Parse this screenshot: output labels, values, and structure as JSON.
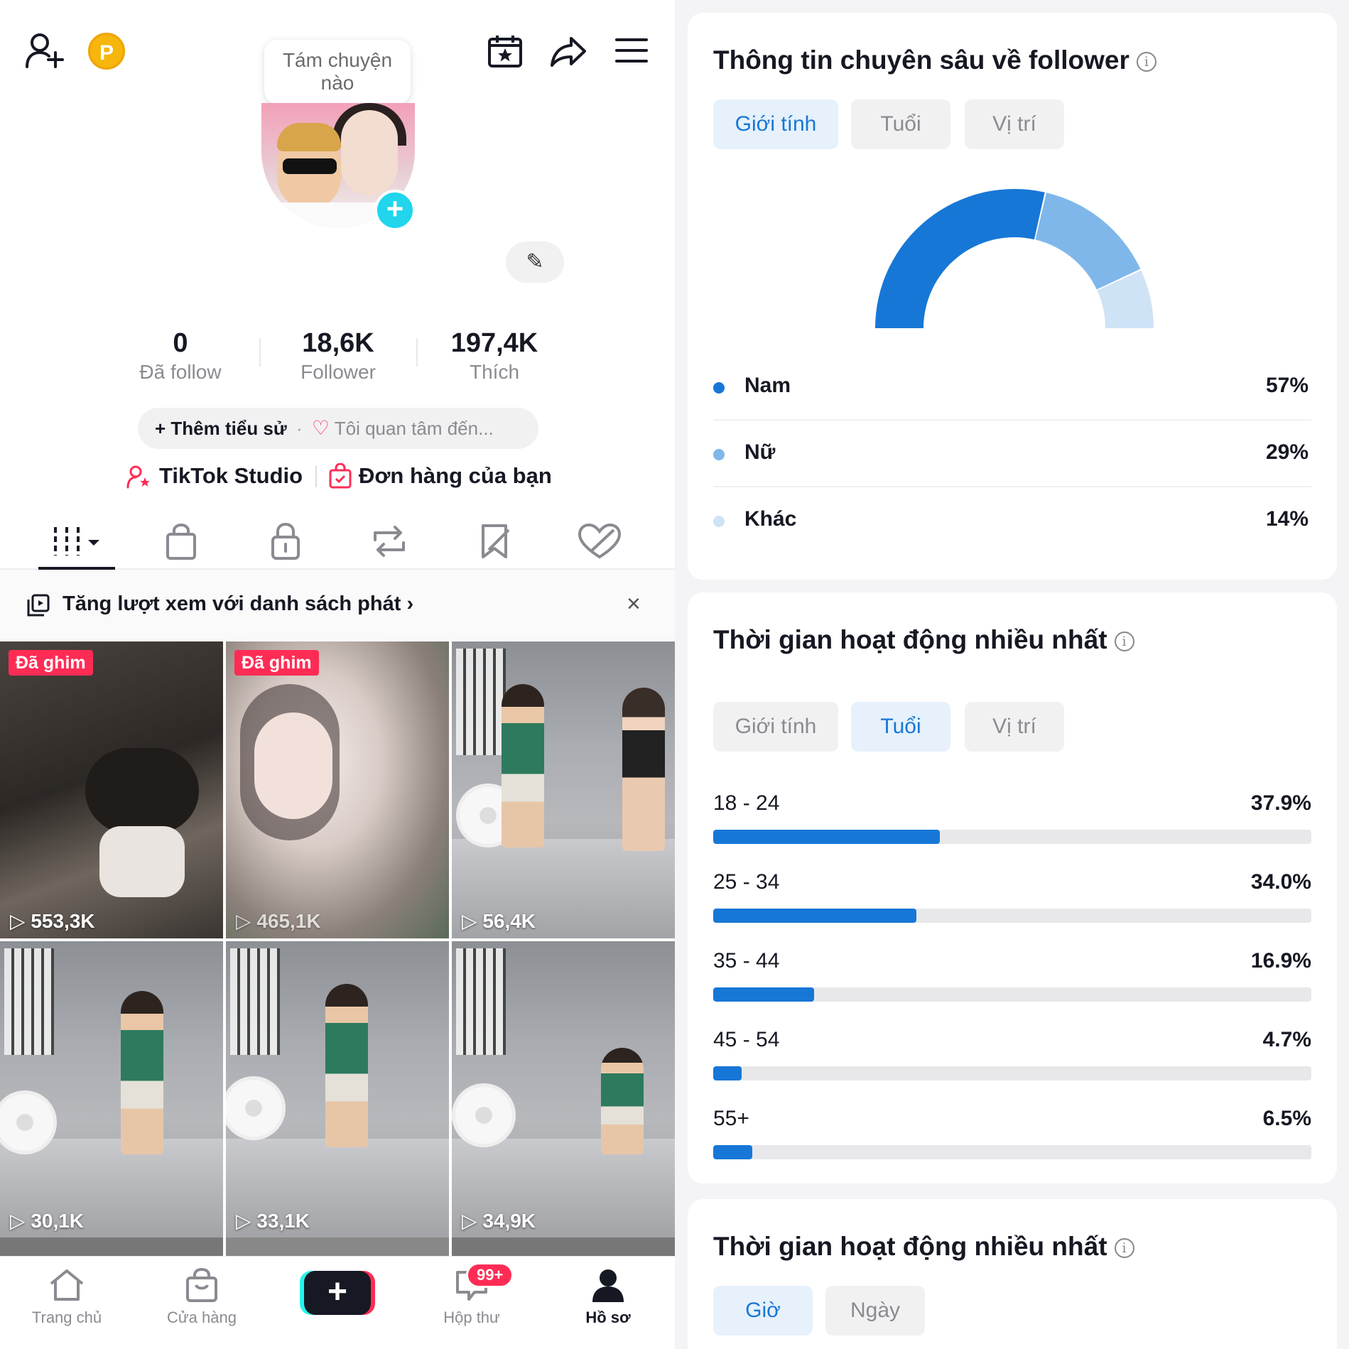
{
  "profile": {
    "bubble_text": "Tám chuyện nào",
    "coin_label": "P",
    "stats": [
      {
        "value": "0",
        "label": "Đã follow"
      },
      {
        "value": "18,6K",
        "label": "Follower"
      },
      {
        "value": "197,4K",
        "label": "Thích"
      }
    ],
    "bio": {
      "add_label": "Thêm tiểu sử",
      "interest_placeholder": "Tôi quan tâm đến..."
    },
    "links": {
      "studio": "TikTok Studio",
      "orders": "Đơn hàng của bạn"
    },
    "promo": {
      "text": "Tăng lượt xem với danh sách phát",
      "close": "×"
    },
    "videos": [
      {
        "pinned": "Đã ghim",
        "views": "553,3K"
      },
      {
        "pinned": "Đã ghim",
        "views": "465,1K"
      },
      {
        "pinned": "",
        "views": "56,4K"
      },
      {
        "pinned": "",
        "views": "30,1K"
      },
      {
        "pinned": "",
        "views": "33,1K"
      },
      {
        "pinned": "",
        "views": "34,9K"
      }
    ],
    "nav": {
      "home": "Trang chủ",
      "shop": "Cửa hàng",
      "inbox": "Hộp thư",
      "inbox_badge": "99+",
      "profile": "Hồ sơ"
    }
  },
  "insights": {
    "title": "Thông tin chuyên sâu về follower",
    "tabs": [
      "Giới tính",
      "Tuổi",
      "Vị trí"
    ],
    "gender": [
      {
        "name": "Nam",
        "percent": "57%",
        "value": 57,
        "color": "#1777d6"
      },
      {
        "name": "Nữ",
        "percent": "29%",
        "value": 29,
        "color": "#7fb7ea"
      },
      {
        "name": "Khác",
        "percent": "14%",
        "value": 14,
        "color": "#cfe3f6"
      }
    ]
  },
  "activity": {
    "title": "Thời gian hoạt động nhiều nhất",
    "tabs": [
      "Giới tính",
      "Tuổi",
      "Vị trí"
    ],
    "ages": [
      {
        "range": "18 - 24",
        "percent": "37.9%",
        "value": 37.9
      },
      {
        "range": "25 - 34",
        "percent": "34.0%",
        "value": 34.0
      },
      {
        "range": "35 - 44",
        "percent": "16.9%",
        "value": 16.9
      },
      {
        "range": "45 - 54",
        "percent": "4.7%",
        "value": 4.7
      },
      {
        "range": "55+",
        "percent": "6.5%",
        "value": 6.5
      }
    ]
  },
  "activity2": {
    "title": "Thời gian hoạt động nhiều nhất",
    "tabs": [
      "Giờ",
      "Ngày"
    ]
  }
}
